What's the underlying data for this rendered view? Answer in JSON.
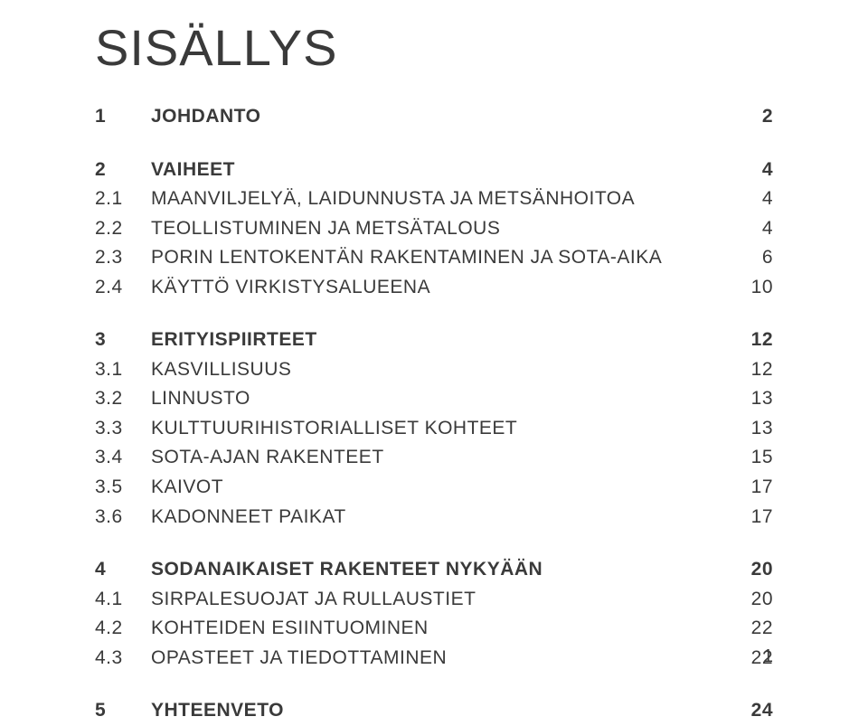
{
  "title": "SISÄLLYS",
  "pageNumber": "1",
  "typography": {
    "title_fontsize": 56,
    "row_fontsize": 21,
    "text_color": "#3a3a3a",
    "background_color": "#ffffff"
  },
  "layout": {
    "num_col_width": 62,
    "page_col_width": 50,
    "group_gap": 26
  },
  "sections": [
    {
      "num": "1",
      "label": "JOHDANTO",
      "page": "2",
      "bold": true,
      "subs": []
    },
    {
      "num": "2",
      "label": "VAIHEET",
      "page": "4",
      "bold": true,
      "subs": [
        {
          "num": "2.1",
          "label": "MAANVILJELYÄ, LAIDUNNUSTA JA METSÄNHOITOA",
          "page": "4"
        },
        {
          "num": "2.2",
          "label": "TEOLLISTUMINEN JA METSÄTALOUS",
          "page": "4"
        },
        {
          "num": "2.3",
          "label": "PORIN LENTOKENTÄN RAKENTAMINEN JA SOTA-AIKA",
          "page": "6"
        },
        {
          "num": "2.4",
          "label": "KÄYTTÖ VIRKISTYSALUEENA",
          "page": "10"
        }
      ]
    },
    {
      "num": "3",
      "label": "ERITYISPIIRTEET",
      "page": "12",
      "bold": true,
      "subs": [
        {
          "num": "3.1",
          "label": "KASVILLISUUS",
          "page": "12"
        },
        {
          "num": "3.2",
          "label": "LINNUSTO",
          "page": "13"
        },
        {
          "num": "3.3",
          "label": "KULTTUURIHISTORIALLISET KOHTEET",
          "page": "13"
        },
        {
          "num": "3.4",
          "label": "SOTA-AJAN RAKENTEET",
          "page": "15"
        },
        {
          "num": "3.5",
          "label": "KAIVOT",
          "page": "17"
        },
        {
          "num": "3.6",
          "label": "KADONNEET PAIKAT",
          "page": "17"
        }
      ]
    },
    {
      "num": "4",
      "label": "SODANAIKAISET RAKENTEET NYKYÄÄN",
      "page": "20",
      "bold": true,
      "subs": [
        {
          "num": "4.1",
          "label": "SIRPALESUOJAT JA RULLAUSTIET",
          "page": "20"
        },
        {
          "num": "4.2",
          "label": "KOHTEIDEN ESIINTUOMINEN",
          "page": "22"
        },
        {
          "num": "4.3",
          "label": "OPASTEET JA TIEDOTTAMINEN",
          "page": "22"
        }
      ]
    },
    {
      "num": "5",
      "label": "YHTEENVETO",
      "page": "24",
      "bold": true,
      "subs": []
    }
  ]
}
